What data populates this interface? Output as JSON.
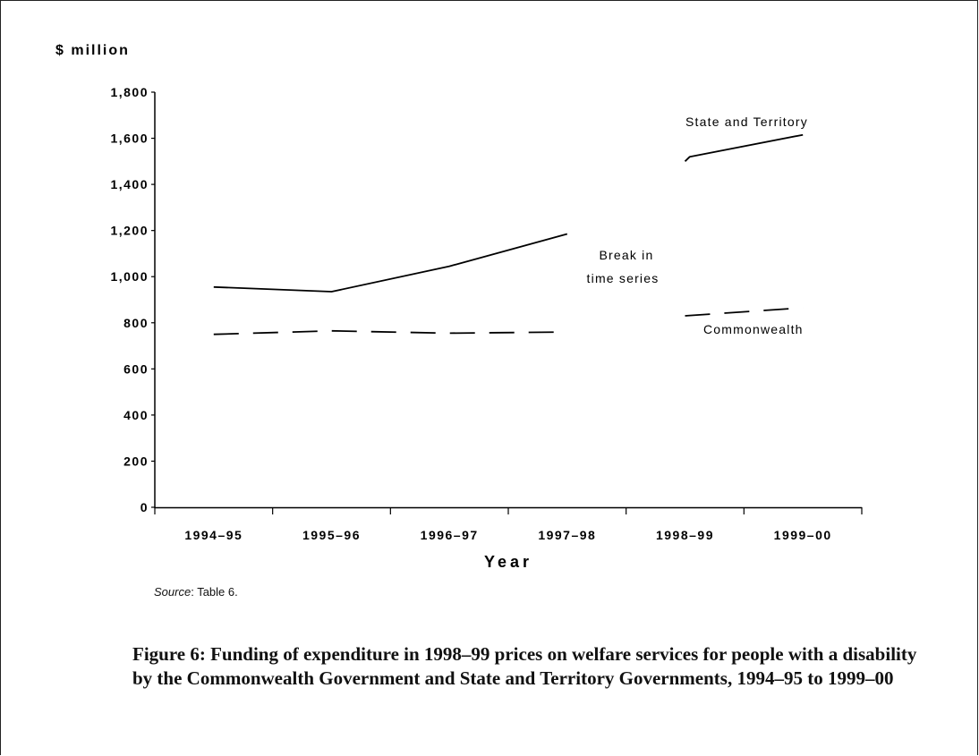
{
  "chart_data": {
    "type": "line",
    "ylabel": "$ million",
    "xlabel": "Year",
    "categories": [
      "1994–95",
      "1995–96",
      "1996–97",
      "1997–98",
      "1998–99",
      "1999–00"
    ],
    "yticks": [
      "0",
      "200",
      "400",
      "600",
      "800",
      "1,000",
      "1,200",
      "1,400",
      "1,600",
      "1,800"
    ],
    "ylim": [
      0,
      1800
    ],
    "grid": false,
    "series": [
      {
        "name": "State and Territory",
        "style": "solid",
        "color": "#000000",
        "segments": [
          [
            [
              0,
              955
            ],
            [
              1,
              935
            ],
            [
              2,
              1045
            ],
            [
              3,
              1185
            ]
          ],
          [
            [
              4,
              1500
            ],
            [
              4.04,
              1520
            ],
            [
              5,
              1615
            ]
          ]
        ]
      },
      {
        "name": "Commonwealth",
        "style": "dashed",
        "color": "#000000",
        "segments": [
          [
            [
              0,
              750
            ],
            [
              1,
              765
            ],
            [
              2,
              755
            ],
            [
              3,
              760
            ]
          ],
          [
            [
              4,
              830
            ],
            [
              5,
              865
            ]
          ]
        ]
      }
    ],
    "annotations": {
      "break_line1": "Break in",
      "break_line2": "time series"
    }
  },
  "source": {
    "label": "Source",
    "text": ": Table 6."
  },
  "caption": "Figure 6: Funding of expenditure in 1998–99 prices on welfare services for people with a disability by the Commonwealth Government and State and Territory Governments, 1994–95 to 1999–00"
}
